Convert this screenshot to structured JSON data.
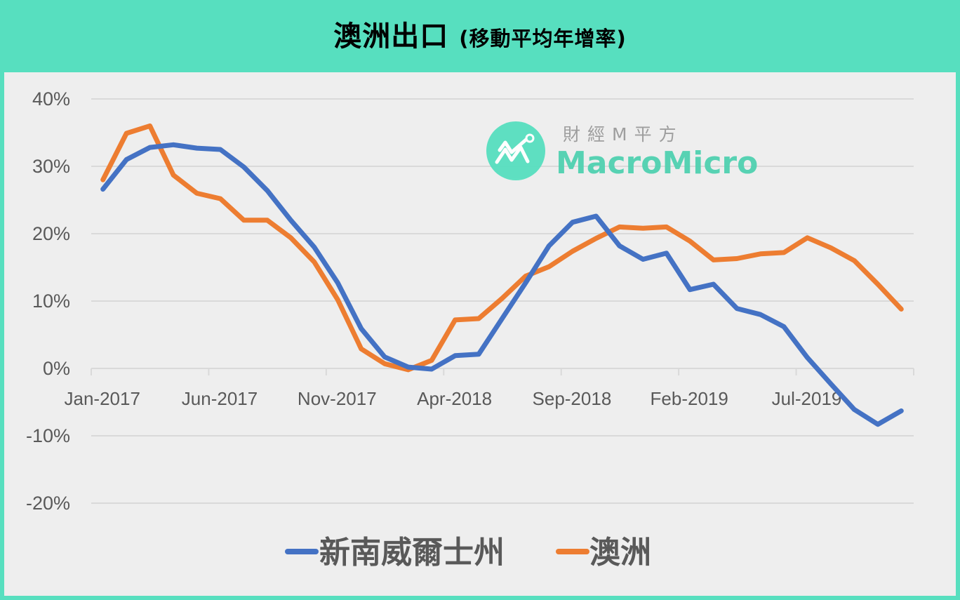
{
  "header": {
    "title_main": "澳洲出口",
    "title_sub": "(移動平均年增率)"
  },
  "watermark": {
    "chinese": "財經M平方",
    "english": "MacroMicro",
    "icon": "macromicro-logo-icon"
  },
  "colors": {
    "frame": "#57dfbf",
    "panel": "#eeeeee",
    "nsw": "#4472c4",
    "australia": "#ed7d31",
    "grid": "#d9d9d9",
    "axis_text": "#595959"
  },
  "chart_data": {
    "type": "line",
    "title": "澳洲出口 (移動平均年增率)",
    "xlabel": "",
    "ylabel": "",
    "ylim": [
      -20,
      40
    ],
    "yticks": [
      "40%",
      "30%",
      "20%",
      "10%",
      "0%",
      "-10%",
      "-20%"
    ],
    "xtick_labels": [
      "Jan-2017",
      "Jun-2017",
      "Nov-2017",
      "Apr-2018",
      "Sep-2018",
      "Feb-2019",
      "Jul-2019"
    ],
    "grid": true,
    "legend_position": "bottom",
    "x": [
      "2017-01",
      "2017-02",
      "2017-03",
      "2017-04",
      "2017-05",
      "2017-06",
      "2017-07",
      "2017-08",
      "2017-09",
      "2017-10",
      "2017-11",
      "2017-12",
      "2018-01",
      "2018-02",
      "2018-03",
      "2018-04",
      "2018-05",
      "2018-06",
      "2018-07",
      "2018-08",
      "2018-09",
      "2018-10",
      "2018-11",
      "2018-12",
      "2019-01",
      "2019-02",
      "2019-03",
      "2019-04",
      "2019-05",
      "2019-06",
      "2019-07",
      "2019-08",
      "2019-09",
      "2019-10",
      "2019-11"
    ],
    "series": [
      {
        "name": "新南威爾士州",
        "color": "#4472c4",
        "values": [
          26.6,
          31.0,
          32.8,
          33.2,
          32.7,
          32.5,
          29.9,
          26.4,
          22.0,
          18.0,
          12.7,
          5.9,
          1.7,
          0.2,
          -0.1,
          1.9,
          2.1,
          7.4,
          12.7,
          18.2,
          21.7,
          22.6,
          18.2,
          16.2,
          17.1,
          11.7,
          12.5,
          8.9,
          8.0,
          6.2,
          1.6,
          -2.3,
          -6.1,
          -8.3,
          -6.3
        ]
      },
      {
        "name": "澳洲",
        "color": "#ed7d31",
        "values": [
          28.0,
          34.9,
          36.0,
          28.7,
          26.0,
          25.2,
          22.0,
          22.0,
          19.4,
          15.8,
          10.2,
          2.9,
          0.7,
          -0.2,
          1.2,
          7.2,
          7.4,
          10.4,
          13.7,
          15.1,
          17.4,
          19.3,
          21.0,
          20.8,
          21.0,
          18.9,
          16.1,
          16.3,
          17.0,
          17.2,
          19.4,
          17.9,
          16.0,
          12.5,
          8.8
        ]
      }
    ]
  },
  "legend": {
    "items": [
      {
        "label": "新南威爾士州",
        "color": "#4472c4"
      },
      {
        "label": "澳洲",
        "color": "#ed7d31"
      }
    ]
  }
}
